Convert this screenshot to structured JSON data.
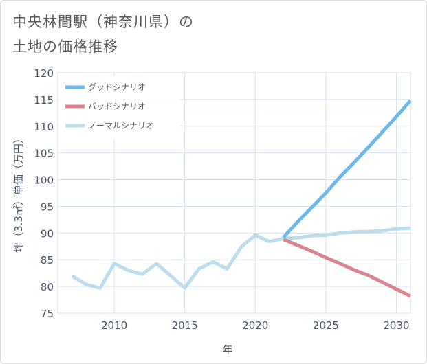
{
  "title_lines": [
    "中央林間駅（神奈川県）の",
    "土地の価格推移"
  ],
  "chart_data": {
    "type": "line",
    "title": "中央林間駅（神奈川県）の土地の価格推移",
    "xlabel": "年",
    "ylabel": "坪（3.3㎡）単価（万円）",
    "xlim": [
      2006,
      2031
    ],
    "ylim": [
      75,
      120
    ],
    "xticks": [
      2010,
      2015,
      2020,
      2025,
      2030
    ],
    "yticks": [
      75,
      80,
      85,
      90,
      95,
      100,
      105,
      110,
      115,
      120
    ],
    "grid": true,
    "legend_position": "top-left",
    "series": [
      {
        "name": "グッドシナリオ",
        "color": "#6cb8ee",
        "x": [
          2022,
          2023,
          2024,
          2025,
          2026,
          2027,
          2028,
          2029,
          2030,
          2031
        ],
        "values": [
          89.2,
          92.1,
          94.8,
          97.5,
          100.5,
          103.2,
          106.0,
          108.9,
          111.8,
          114.8
        ]
      },
      {
        "name": "バッドシナリオ",
        "color": "#d9848f",
        "x": [
          2022,
          2023,
          2024,
          2025,
          2026,
          2027,
          2028,
          2029,
          2030,
          2031
        ],
        "values": [
          88.8,
          87.7,
          86.6,
          85.4,
          84.3,
          83.1,
          82.1,
          80.8,
          79.5,
          78.2
        ]
      },
      {
        "name": "ノーマルシナリオ",
        "color": "#bddcec",
        "x": [
          2007,
          2008,
          2009,
          2010,
          2011,
          2012,
          2013,
          2014,
          2015,
          2016,
          2017,
          2018,
          2019,
          2020,
          2021,
          2022,
          2023,
          2024,
          2025,
          2026,
          2027,
          2028,
          2029,
          2030,
          2031
        ],
        "values": [
          82.0,
          80.4,
          79.7,
          84.3,
          83.0,
          82.3,
          84.3,
          82.0,
          79.7,
          83.3,
          84.6,
          83.3,
          87.4,
          89.6,
          88.4,
          89.0,
          89.1,
          89.5,
          89.6,
          90.0,
          90.2,
          90.3,
          90.4,
          90.8,
          90.9
        ]
      }
    ]
  }
}
